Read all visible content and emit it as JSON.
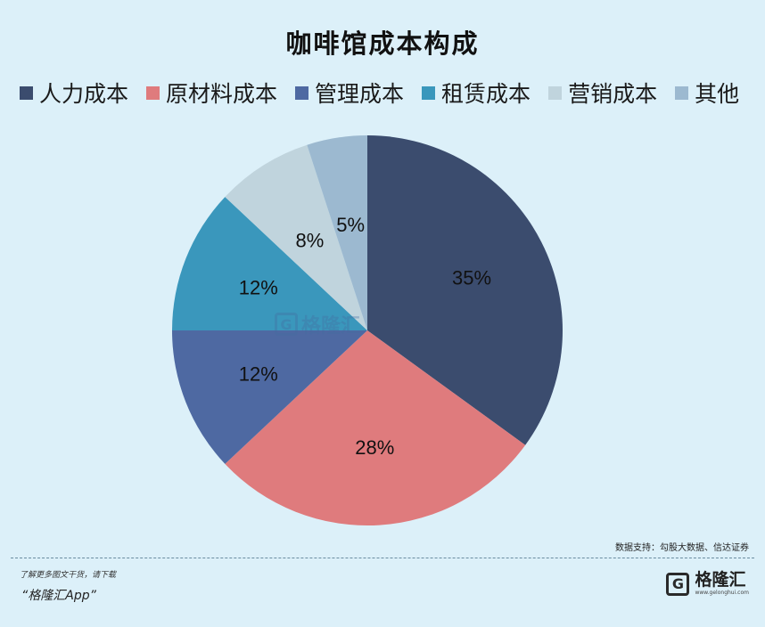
{
  "chart_data": {
    "type": "pie",
    "title": "咖啡馆成本构成",
    "legend_position": "top",
    "start": "12 o'clock, clockwise",
    "slices": [
      {
        "label": "人力成本",
        "value": 35,
        "display": "35%",
        "color": "#3b4c6e"
      },
      {
        "label": "原材料成本",
        "value": 28,
        "display": "28%",
        "color": "#df7b7d"
      },
      {
        "label": "管理成本",
        "value": 12,
        "display": "12%",
        "color": "#4e69a2"
      },
      {
        "label": "租赁成本",
        "value": 12,
        "display": "12%",
        "color": "#3a97bc"
      },
      {
        "label": "营销成本",
        "value": 8,
        "display": "8%",
        "color": "#c0d4dd"
      },
      {
        "label": "其他",
        "value": 5,
        "display": "5%",
        "color": "#9cb9d0"
      }
    ]
  },
  "watermark": {
    "logo": "G",
    "text": "格隆汇"
  },
  "source": "数据支持：勾股大数据、信达证券",
  "footer": {
    "hint": "了解更多图文干货，请下载",
    "app": "“格隆汇App”",
    "brand_logo": "G",
    "brand_name": "格隆汇",
    "brand_url": "www.gelonghui.com"
  }
}
